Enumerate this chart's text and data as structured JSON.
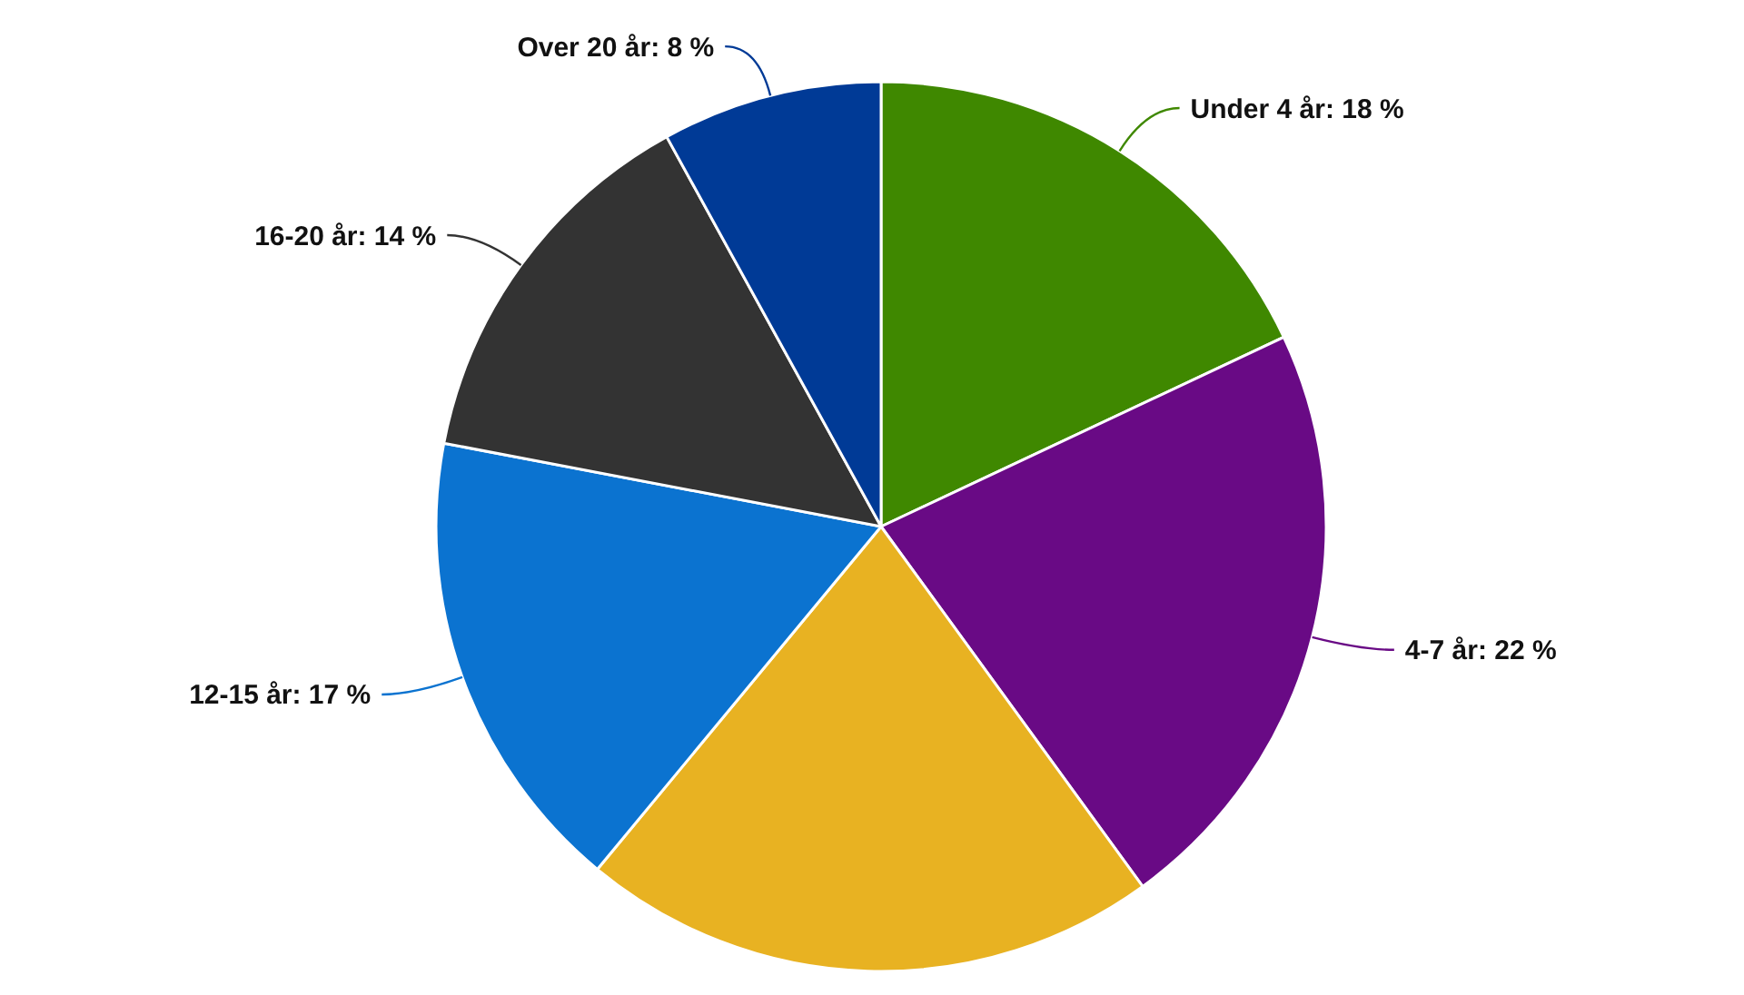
{
  "chart_data": {
    "type": "pie",
    "categories": [
      "Under 4 år",
      "4-7 år",
      null,
      "12-15 år",
      "16-20 år",
      "Over 20 år"
    ],
    "values": [
      18,
      22,
      21,
      17,
      14,
      8
    ],
    "value_labels": [
      "18 %",
      "22 %",
      null,
      "17 %",
      "14 %",
      "8 %"
    ],
    "colors": [
      "#3f8800",
      "#690a85",
      "#e8b222",
      "#0b73d0",
      "#333333",
      "#003a96"
    ]
  }
}
